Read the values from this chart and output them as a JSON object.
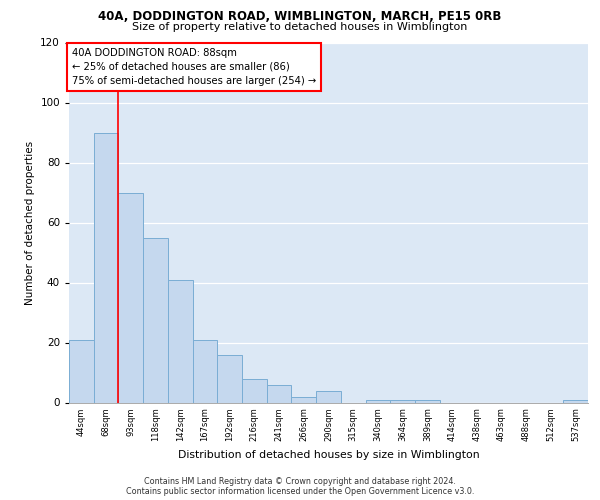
{
  "title1": "40A, DODDINGTON ROAD, WIMBLINGTON, MARCH, PE15 0RB",
  "title2": "Size of property relative to detached houses in Wimblington",
  "xlabel": "Distribution of detached houses by size in Wimblington",
  "ylabel": "Number of detached properties",
  "bar_labels": [
    "44sqm",
    "68sqm",
    "93sqm",
    "118sqm",
    "142sqm",
    "167sqm",
    "192sqm",
    "216sqm",
    "241sqm",
    "266sqm",
    "290sqm",
    "315sqm",
    "340sqm",
    "364sqm",
    "389sqm",
    "414sqm",
    "438sqm",
    "463sqm",
    "488sqm",
    "512sqm",
    "537sqm"
  ],
  "bar_values": [
    21,
    90,
    70,
    55,
    41,
    21,
    16,
    8,
    6,
    2,
    4,
    0,
    1,
    1,
    1,
    0,
    0,
    0,
    0,
    0,
    1
  ],
  "bar_color": "#c5d8ee",
  "bar_edge_color": "#7aadd4",
  "background_color": "#dce8f5",
  "red_line_x": 1.5,
  "annotation_line1": "40A DODDINGTON ROAD: 88sqm",
  "annotation_line2": "← 25% of detached houses are smaller (86)",
  "annotation_line3": "75% of semi-detached houses are larger (254) →",
  "footer1": "Contains HM Land Registry data © Crown copyright and database right 2024.",
  "footer2": "Contains public sector information licensed under the Open Government Licence v3.0.",
  "ylim": [
    0,
    120
  ],
  "yticks": [
    0,
    20,
    40,
    60,
    80,
    100,
    120
  ]
}
